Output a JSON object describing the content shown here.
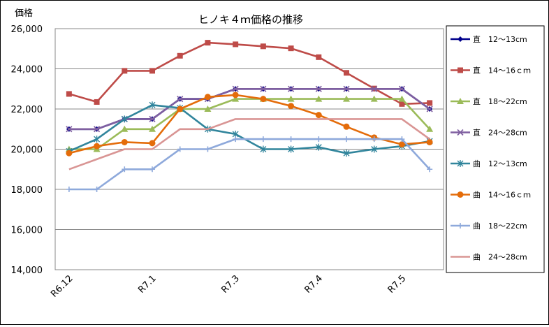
{
  "chart_data": {
    "type": "line",
    "title": "ヒノキ４ｍ価格の推移",
    "ylabel": "価格",
    "xlabel": "",
    "ylim": [
      14000,
      26000
    ],
    "yticks": [
      "14,000",
      "16,000",
      "18,000",
      "20,000",
      "22,000",
      "24,000",
      "26,000"
    ],
    "ytick_values": [
      14000,
      16000,
      18000,
      20000,
      22000,
      24000,
      26000
    ],
    "x_tick_labels": [
      {
        "label": "R6.12",
        "index": 0
      },
      {
        "label": "R7.1",
        "index": 3
      },
      {
        "label": "R7.3",
        "index": 6
      },
      {
        "label": "R7.4",
        "index": 9
      },
      {
        "label": "R7.5",
        "index": 12
      }
    ],
    "grid": true,
    "legend_position": "right",
    "series": [
      {
        "name": "直　12～13cm",
        "color": "#00008b",
        "marker": "diamond",
        "values": [
          21000,
          21000,
          21500,
          21500,
          22500,
          22500,
          23000,
          23000,
          23000,
          23000,
          23000,
          23000,
          23000,
          22000
        ]
      },
      {
        "name": "直　14～16ｃｍ",
        "color": "#be4b48",
        "marker": "square",
        "values": [
          22750,
          22350,
          23900,
          23900,
          24650,
          25300,
          25220,
          25120,
          25020,
          24580,
          23800,
          23020,
          22250,
          22300
        ]
      },
      {
        "name": "直　18～22cm",
        "color": "#9bbb59",
        "marker": "triangle",
        "values": [
          20000,
          20000,
          21000,
          21000,
          22000,
          22000,
          22500,
          22500,
          22500,
          22500,
          22500,
          22500,
          22500,
          21000
        ]
      },
      {
        "name": "直　24～28cm",
        "color": "#7f5fa0",
        "marker": "x",
        "values": [
          21000,
          21000,
          21500,
          21500,
          22500,
          22500,
          23000,
          23000,
          23000,
          23000,
          23000,
          23000,
          23000,
          22000
        ]
      },
      {
        "name": "曲　12～13cm",
        "color": "#31859c",
        "marker": "star",
        "values": [
          19900,
          20500,
          21500,
          22200,
          22050,
          21000,
          20750,
          20000,
          20000,
          20100,
          19800,
          20000,
          20150,
          20400
        ]
      },
      {
        "name": "曲　14～16ｃｍ",
        "color": "#e46c0a",
        "marker": "circle",
        "values": [
          19800,
          20150,
          20350,
          20300,
          22000,
          22600,
          22700,
          22500,
          22150,
          21700,
          21120,
          20580,
          20240,
          20350
        ]
      },
      {
        "name": "曲　18～22cm",
        "color": "#8ea9db",
        "marker": "plus",
        "values": [
          18000,
          18000,
          19000,
          19000,
          20000,
          20000,
          20500,
          20500,
          20500,
          20500,
          20500,
          20500,
          20500,
          19000
        ]
      },
      {
        "name": "曲　24～28cm",
        "color": "#d99594",
        "marker": "none",
        "values": [
          19000,
          19500,
          20000,
          20000,
          21000,
          21000,
          21500,
          21500,
          21500,
          21500,
          21500,
          21500,
          21500,
          20500
        ]
      }
    ]
  }
}
